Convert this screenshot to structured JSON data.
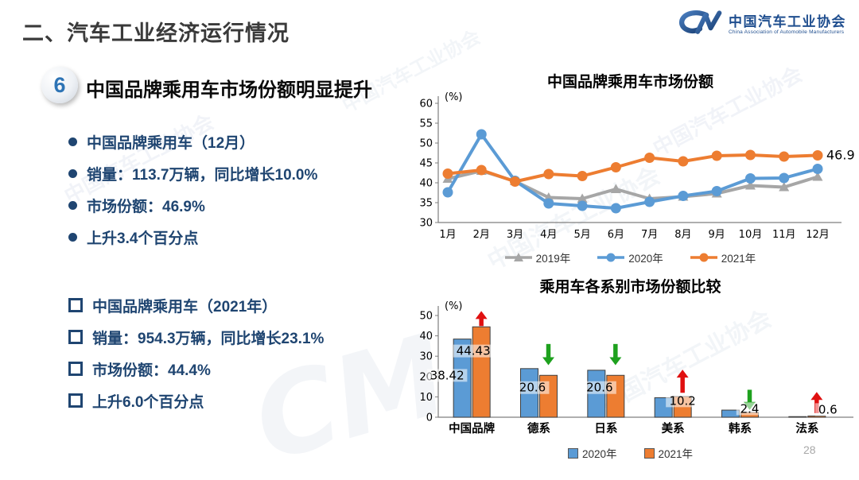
{
  "header": {
    "slide_title": "二、汽车工业经济运行情况",
    "logo": {
      "mark": "CM",
      "name_cn": "中国汽车工业协会",
      "name_en": "China Association of Automobile Manufacturers"
    }
  },
  "section": {
    "badge_number": "6",
    "headline": "中国品牌乘用车市场份额明显提升"
  },
  "bullets_monthly": {
    "bullet_style": "disc",
    "items": [
      "中国品牌乘用车（12月）",
      "销量：113.7万辆，同比增长10.0%",
      "市场份额：46.9%",
      "上升3.4个百分点"
    ]
  },
  "bullets_yearly": {
    "bullet_style": "square",
    "items": [
      "中国品牌乘用车（2021年）",
      "销量：954.3万辆，同比增长23.1%",
      "市场份额：44.4%",
      "上升6.0个百分点"
    ]
  },
  "watermark_text": "中国汽车工业协会",
  "watermark_mark": "CM",
  "page_number": "28",
  "colors": {
    "navy_text": "#1f4571",
    "logo_blue": "#1f4e8f",
    "series_2019": "#a6a6a6",
    "series_2020": "#5b9bd5",
    "series_2021": "#ed7d31",
    "arrow_up": "#e01010",
    "arrow_down": "#1ea11e"
  },
  "chart_data": [
    {
      "type": "line",
      "title": "中国品牌乘用车市场份额",
      "unit_label": "(%)",
      "x": [
        "1月",
        "2月",
        "3月",
        "4月",
        "5月",
        "6月",
        "7月",
        "8月",
        "9月",
        "10月",
        "11月",
        "12月"
      ],
      "ylim": [
        30,
        60
      ],
      "ytick_step": 5,
      "grid": false,
      "legend_position": "bottom",
      "series": [
        {
          "name": "2019年",
          "color": "#a6a6a6",
          "marker": "triangle",
          "values": [
            41.0,
            43.0,
            40.4,
            36.3,
            36.0,
            38.4,
            36.0,
            36.5,
            37.3,
            39.3,
            38.9,
            41.5
          ]
        },
        {
          "name": "2020年",
          "color": "#5b9bd5",
          "marker": "circle",
          "values": [
            37.6,
            52.2,
            40.5,
            34.8,
            34.2,
            33.6,
            35.2,
            36.7,
            37.9,
            41.1,
            41.2,
            43.5
          ]
        },
        {
          "name": "2021年",
          "color": "#ed7d31",
          "marker": "circle",
          "values": [
            42.3,
            43.2,
            40.3,
            42.2,
            41.7,
            43.9,
            46.3,
            45.4,
            46.8,
            47.0,
            46.6,
            46.9
          ]
        }
      ],
      "end_annotation": {
        "series_index": 2,
        "text": "46.9"
      }
    },
    {
      "type": "bar",
      "title": "乘用车各系别市场份额比较",
      "unit_label": "(%)",
      "categories": [
        "中国品牌",
        "德系",
        "日系",
        "美系",
        "韩系",
        "法系"
      ],
      "ylim": [
        0,
        50
      ],
      "ytick_step": 10,
      "grid": false,
      "legend_position": "bottom",
      "series": [
        {
          "name": "2020年",
          "color": "#5b9bd5",
          "values": [
            38.42,
            23.9,
            23.1,
            9.6,
            3.5,
            0.3
          ]
        },
        {
          "name": "2021年",
          "color": "#ed7d31",
          "values": [
            44.43,
            20.6,
            20.6,
            10.2,
            2.4,
            0.6
          ]
        }
      ],
      "value_labels": [
        {
          "ci": 0,
          "text": "38.42",
          "dx": -31,
          "v": 19,
          "anchor": "middle"
        },
        {
          "ci": 0,
          "text": "44.43",
          "dx": 2,
          "v": 31,
          "anchor": "middle"
        },
        {
          "ci": 1,
          "text": "20.6",
          "dx": -8,
          "v": 13,
          "anchor": "middle"
        },
        {
          "ci": 2,
          "text": "20.6",
          "dx": -8,
          "v": 13,
          "anchor": "middle"
        },
        {
          "ci": 3,
          "text": "10.2",
          "dx": 12,
          "v": 6.5,
          "anchor": "middle"
        },
        {
          "ci": 4,
          "text": "2.4",
          "dx": 12,
          "v": 2.6,
          "anchor": "middle"
        },
        {
          "ci": 5,
          "text": "0.6",
          "dx": 14,
          "v": 2.2,
          "anchor": "start"
        }
      ],
      "trend_arrows": [
        {
          "ci": 0,
          "dir": "up",
          "color": "#e01010",
          "vFrom": 44.8,
          "vTo": 51.8
        },
        {
          "ci": 1,
          "dir": "down",
          "color": "#1ea11e",
          "vFrom": 36,
          "vTo": 26
        },
        {
          "ci": 2,
          "dir": "down",
          "color": "#1ea11e",
          "vFrom": 36,
          "vTo": 26
        },
        {
          "ci": 3,
          "dir": "up",
          "color": "#e01010",
          "vFrom": 12,
          "vTo": 23
        },
        {
          "ci": 4,
          "dir": "down",
          "color": "#1ea11e",
          "vFrom": 13.5,
          "vTo": 4
        },
        {
          "ci": 5,
          "dir": "up",
          "color": "#e01010",
          "vFrom": 2,
          "vTo": 12
        }
      ]
    }
  ]
}
